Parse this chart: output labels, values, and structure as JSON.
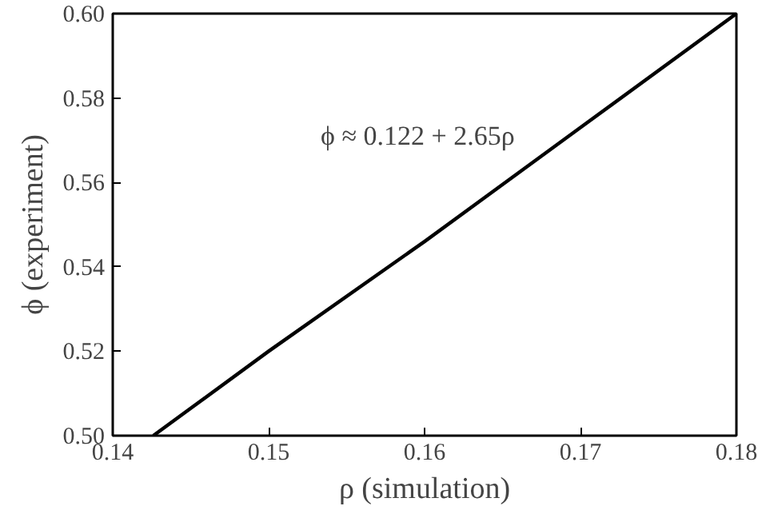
{
  "chart_data": {
    "type": "line",
    "xlabel": "ρ (simulation)",
    "ylabel": "ϕ (experiment)",
    "annotations": [
      "ϕ ≈ 0.122 + 2.65ρ"
    ],
    "x": [
      0.1426,
      0.15,
      0.16,
      0.17,
      0.18
    ],
    "series": [
      {
        "color": "#000000",
        "values": [
          0.5,
          0.52,
          0.546,
          0.573,
          0.6
        ]
      }
    ],
    "xlim": [
      0.14,
      0.18
    ],
    "ylim": [
      0.5,
      0.6
    ],
    "xticks": [
      0.14,
      0.15,
      0.16,
      0.17,
      0.18
    ],
    "yticks": [
      {
        "value": 0.5,
        "label": "0.50"
      },
      0.52,
      0.54,
      0.56,
      0.58,
      {
        "value": 0.6,
        "label": "0.60"
      }
    ],
    "grid": false,
    "marker": "none",
    "line_style": "solid"
  }
}
